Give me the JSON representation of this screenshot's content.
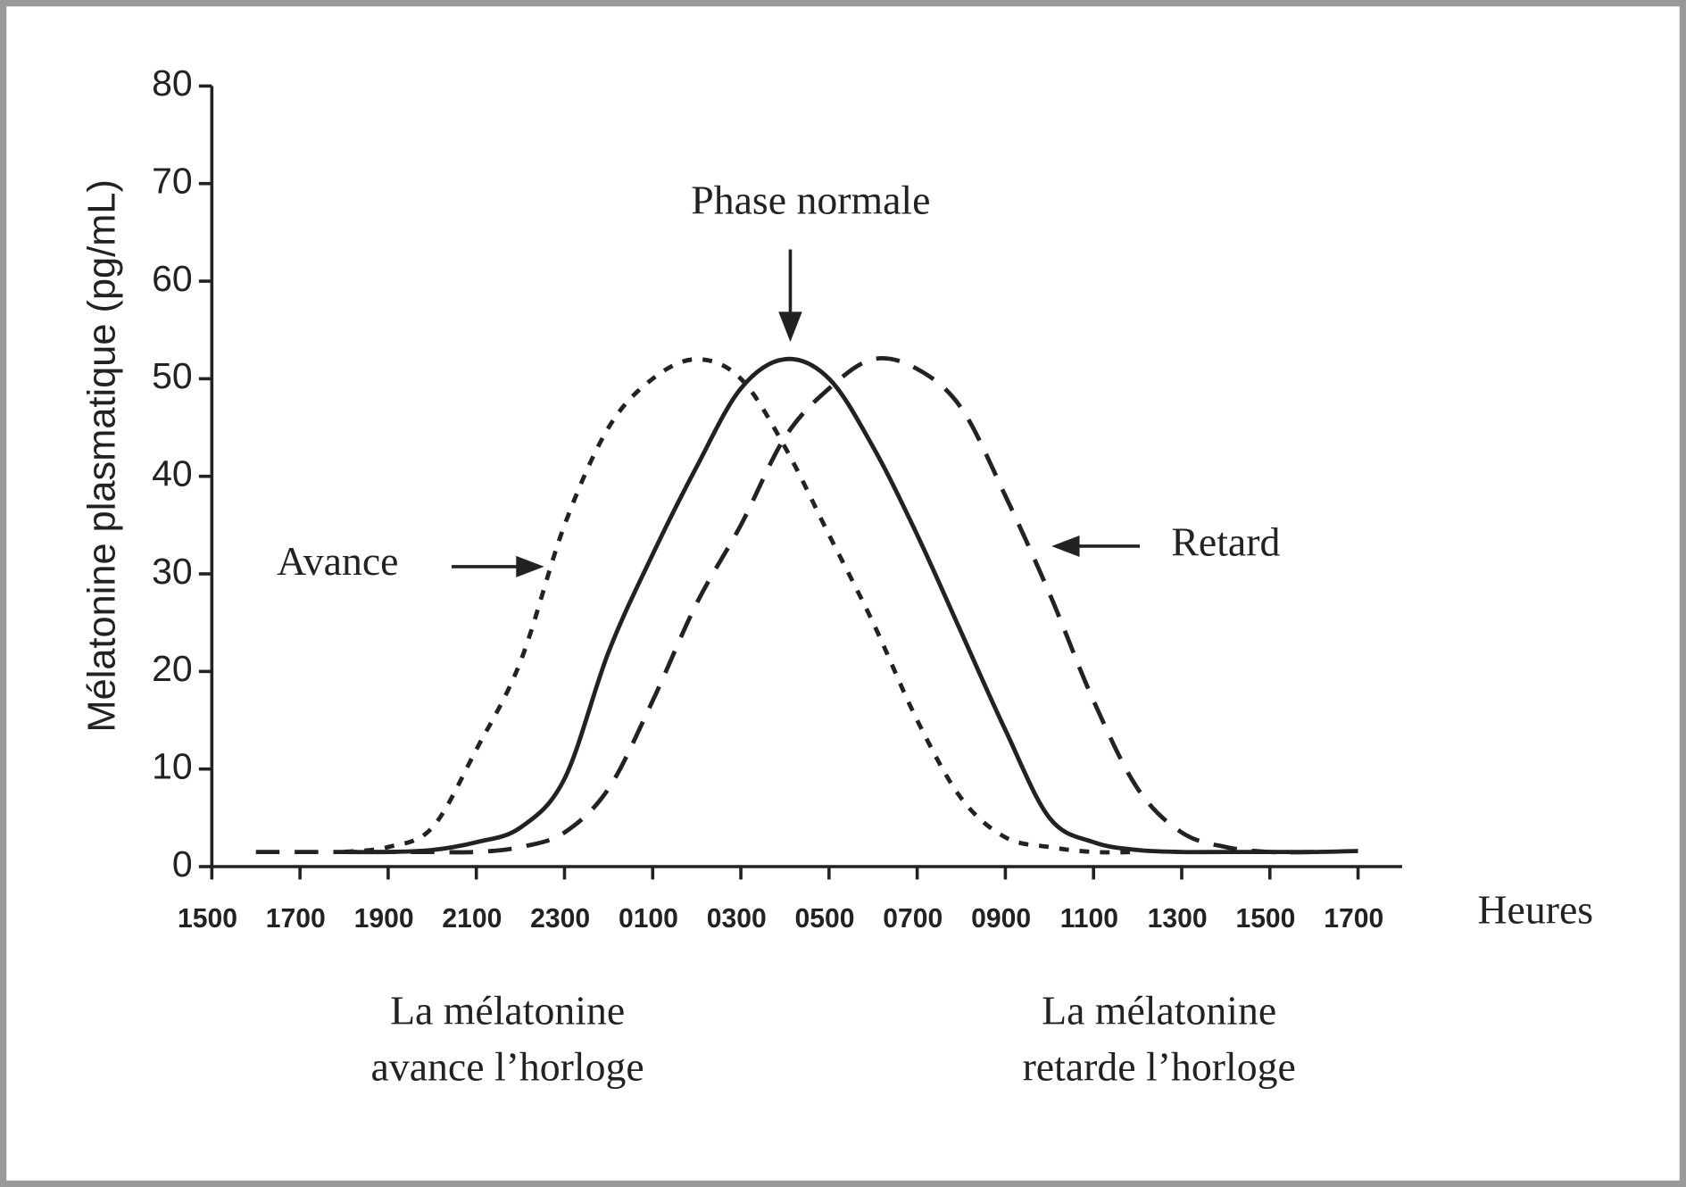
{
  "chart_data": {
    "type": "line",
    "y_label": "Mélatonine plasmatique (pg/mL)",
    "x_label": "Heures",
    "x": [
      0,
      1,
      2,
      3,
      4,
      5,
      6,
      7,
      8,
      9,
      10,
      11,
      12,
      13,
      14,
      15,
      16,
      17,
      18,
      19,
      20,
      21,
      22,
      23,
      24,
      25,
      26
    ],
    "xlim": [
      0,
      27
    ],
    "xticks": [
      {
        "value": 0,
        "label": "1500"
      },
      {
        "value": 2,
        "label": "1700"
      },
      {
        "value": 4,
        "label": "1900"
      },
      {
        "value": 6,
        "label": "2100"
      },
      {
        "value": 8,
        "label": "2300"
      },
      {
        "value": 10,
        "label": "0100"
      },
      {
        "value": 12,
        "label": "0300"
      },
      {
        "value": 14,
        "label": "0500"
      },
      {
        "value": 16,
        "label": "0700"
      },
      {
        "value": 18,
        "label": "0900"
      },
      {
        "value": 20,
        "label": "1100"
      },
      {
        "value": 22,
        "label": "1300"
      },
      {
        "value": 24,
        "label": "1500"
      },
      {
        "value": 26,
        "label": "1700"
      }
    ],
    "ylim": [
      0,
      80
    ],
    "yticks": [
      0,
      10,
      20,
      30,
      40,
      50,
      60,
      70,
      80
    ],
    "series": [
      {
        "name": "Avance",
        "color": "#222222",
        "style": "dotted",
        "values": [
          null,
          null,
          null,
          1.5,
          2,
          4,
          12,
          21,
          35,
          45,
          50,
          52,
          50,
          43,
          34,
          25,
          15,
          7,
          3,
          2,
          1.5,
          1.5,
          null,
          null,
          null,
          null,
          null
        ]
      },
      {
        "name": "Phase normale",
        "color": "#222222",
        "style": "solid",
        "values": [
          null,
          null,
          null,
          1.5,
          1.5,
          1.7,
          2.5,
          4,
          9,
          22,
          32,
          41,
          49,
          52,
          50,
          43,
          34,
          24,
          14,
          5,
          2.5,
          1.7,
          1.5,
          1.5,
          1.5,
          1.5,
          1.6
        ]
      },
      {
        "name": "Retard",
        "color": "#222222",
        "style": "dashed",
        "values": [
          null,
          1.5,
          1.5,
          1.5,
          1.5,
          1.5,
          1.5,
          2,
          3.5,
          8,
          17,
          27,
          35,
          44,
          49,
          52,
          51,
          47,
          38,
          28,
          17,
          8,
          3.5,
          2,
          1.5,
          1.5,
          null
        ]
      }
    ],
    "notes": {
      "left": [
        "La mélatonine",
        "avance l’horloge"
      ],
      "right": [
        "La mélatonine",
        "retarde l’horloge"
      ]
    }
  }
}
